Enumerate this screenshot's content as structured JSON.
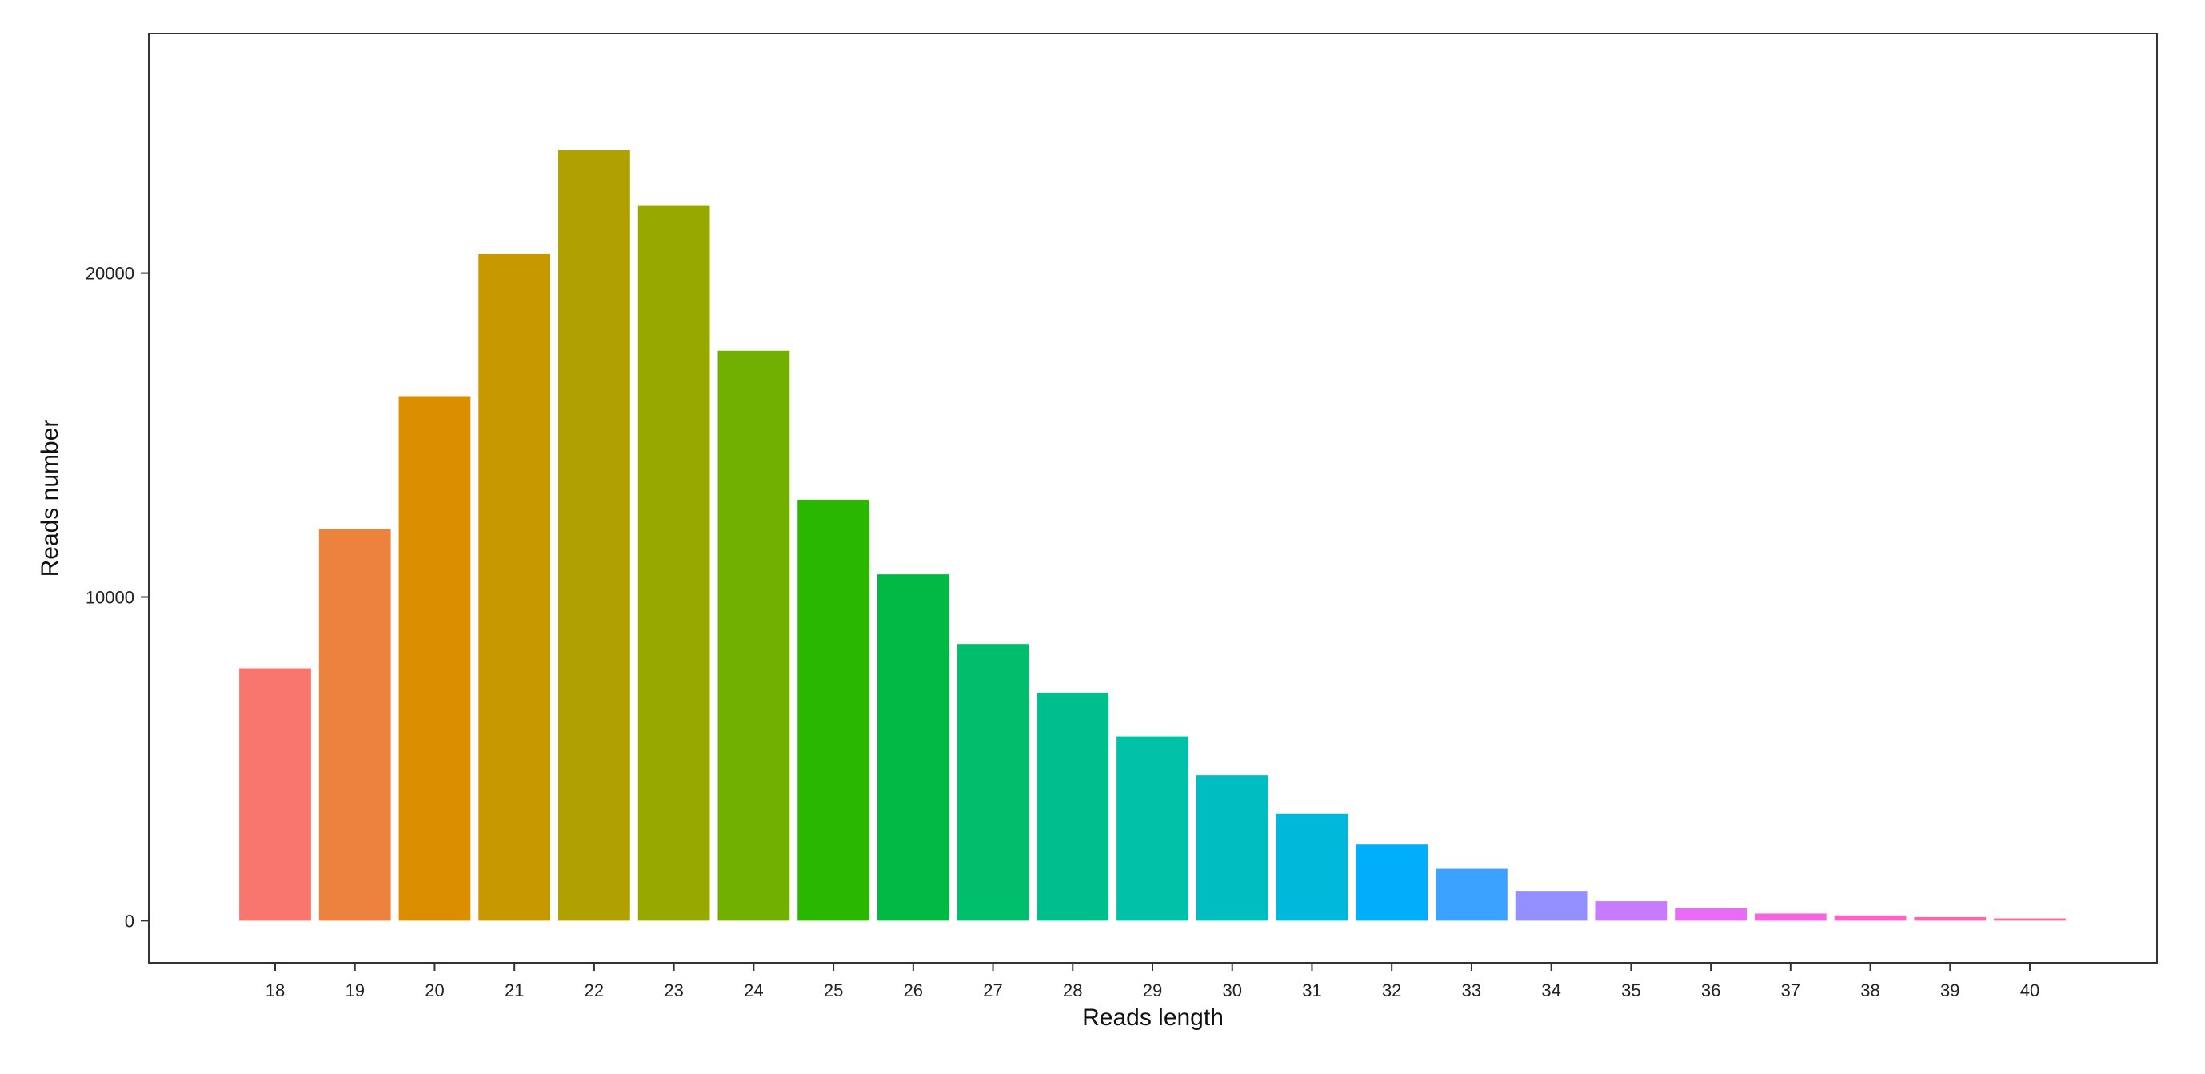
{
  "chart_data": {
    "type": "bar",
    "xlabel": "Reads length",
    "ylabel": "Reads number",
    "categories": [
      "18",
      "19",
      "20",
      "21",
      "22",
      "23",
      "24",
      "25",
      "26",
      "27",
      "28",
      "29",
      "30",
      "31",
      "32",
      "33",
      "34",
      "35",
      "36",
      "37",
      "38",
      "39",
      "40"
    ],
    "values": [
      7800,
      12100,
      16200,
      20600,
      23800,
      22100,
      17600,
      13000,
      10700,
      8550,
      7050,
      5700,
      4500,
      3300,
      2350,
      1600,
      920,
      600,
      380,
      220,
      160,
      110,
      70
    ],
    "yticks": [
      0,
      10000,
      20000
    ],
    "ytick_labels": [
      "0",
      "10000",
      "20000"
    ],
    "ylim": [
      -1300,
      27400
    ],
    "grid": false,
    "legend": "none",
    "colors": [
      "#F8766D",
      "#EC823C",
      "#DB8E00",
      "#C79800",
      "#B0A000",
      "#97A800",
      "#72B000",
      "#2AB700",
      "#00BA44",
      "#00BE6C",
      "#00BF8C",
      "#00C0A8",
      "#00BDC2",
      "#00B8DA",
      "#00AEFA",
      "#3CA2FF",
      "#9590FF",
      "#C77CFF",
      "#E76BF3",
      "#F863DF",
      "#FF62C3",
      "#FF63AB",
      "#FF6C91"
    ]
  }
}
